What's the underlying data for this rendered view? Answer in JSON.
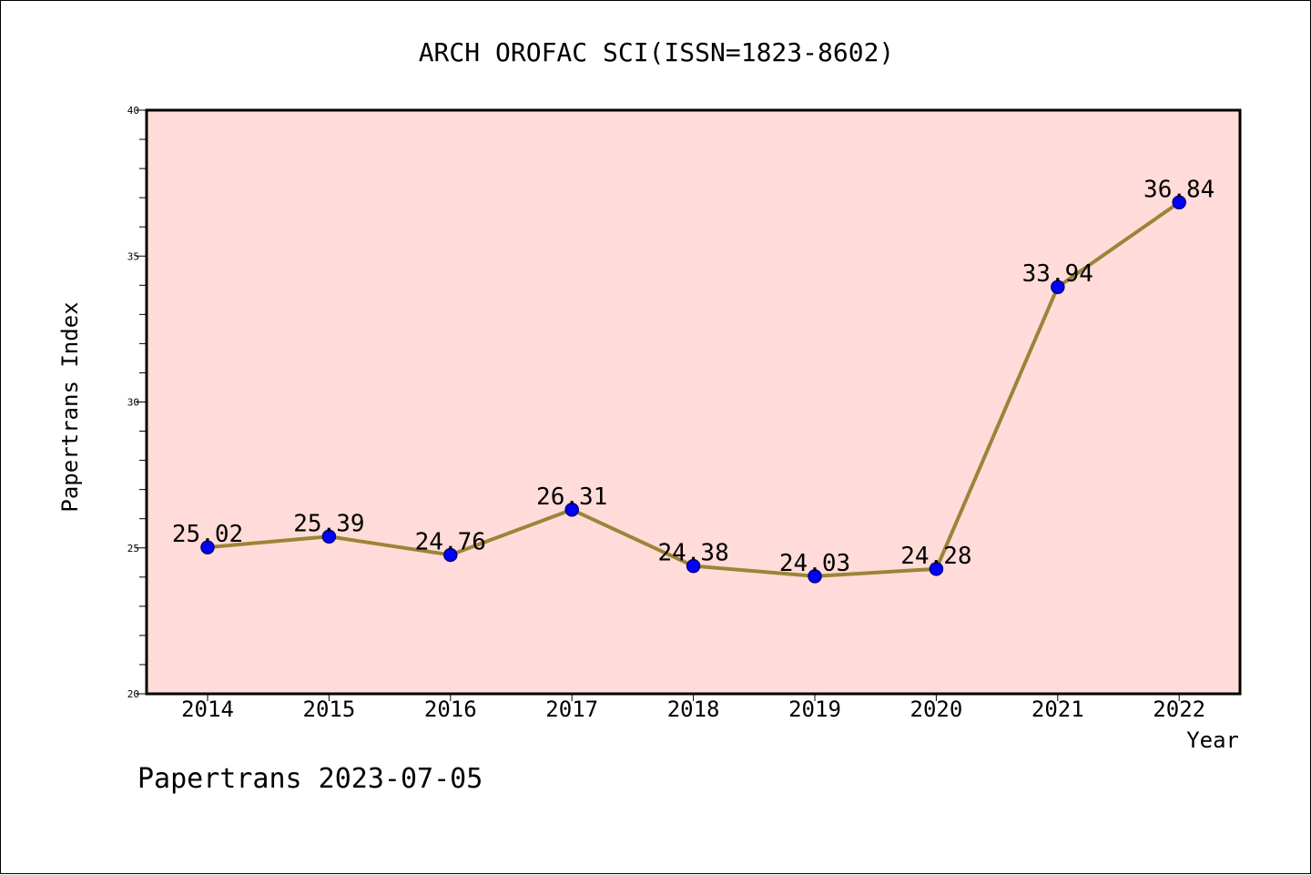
{
  "chart_data": {
    "type": "line",
    "title": "ARCH OROFAC SCI(ISSN=1823-8602)",
    "xlabel": "Year",
    "ylabel": "Papertrans Index",
    "x": [
      "2014",
      "2015",
      "2016",
      "2017",
      "2018",
      "2019",
      "2020",
      "2021",
      "2022"
    ],
    "series": [
      {
        "values": [
          25.02,
          25.39,
          24.76,
          26.31,
          24.38,
          24.03,
          24.28,
          33.94,
          36.84
        ],
        "labels": [
          "25.02",
          "25.39",
          "24.76",
          "26.31",
          "24.38",
          "24.03",
          "24.28",
          "33.94",
          "36.84"
        ]
      }
    ],
    "ylim": [
      20,
      40
    ],
    "yticks": [
      "20",
      "25",
      "30",
      "35",
      "40"
    ],
    "grid": false,
    "legend": "none",
    "colors": {
      "plot_background": "#ffdcd9",
      "line": "#9b8439",
      "marker": "#0000ff",
      "marker_edge": "#000080"
    }
  },
  "footer": "Papertrans 2023-07-05"
}
